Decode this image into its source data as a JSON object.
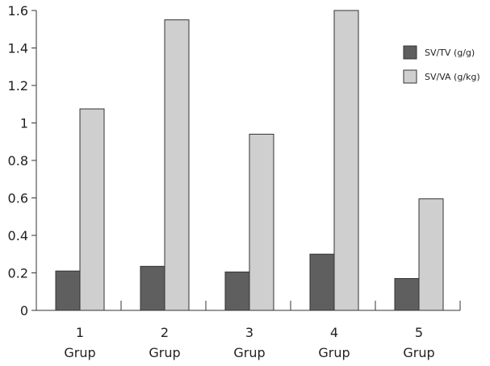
{
  "chart_data": {
    "type": "bar",
    "categories": [
      {
        "number": "1",
        "label": "Grup"
      },
      {
        "number": "2",
        "label": "Grup"
      },
      {
        "number": "3",
        "label": "Grup"
      },
      {
        "number": "4",
        "label": "Grup"
      },
      {
        "number": "5",
        "label": "Grup"
      }
    ],
    "series": [
      {
        "name": "SV/TV (g/g)",
        "color": "#5f5f5f",
        "values": [
          0.21,
          0.235,
          0.205,
          0.3,
          0.17
        ]
      },
      {
        "name": "SV/VA (g/kg)",
        "color": "#cfcfcf",
        "values": [
          1.075,
          1.55,
          0.94,
          1.6,
          0.595
        ]
      }
    ],
    "ylim": [
      0,
      1.6
    ],
    "yticks": [
      {
        "value": 0,
        "label": "0"
      },
      {
        "value": 0.2,
        "label": "0.2"
      },
      {
        "value": 0.4,
        "label": "0.4"
      },
      {
        "value": 0.6,
        "label": "0.6"
      },
      {
        "value": 0.8,
        "label": "0.8"
      },
      {
        "value": 1.0,
        "label": "1"
      },
      {
        "value": 1.2,
        "label": "1.2"
      },
      {
        "value": 1.4,
        "label": "1.4"
      },
      {
        "value": 1.6,
        "label": "1.6"
      }
    ],
    "legend_position": "top-right",
    "grid": false
  }
}
